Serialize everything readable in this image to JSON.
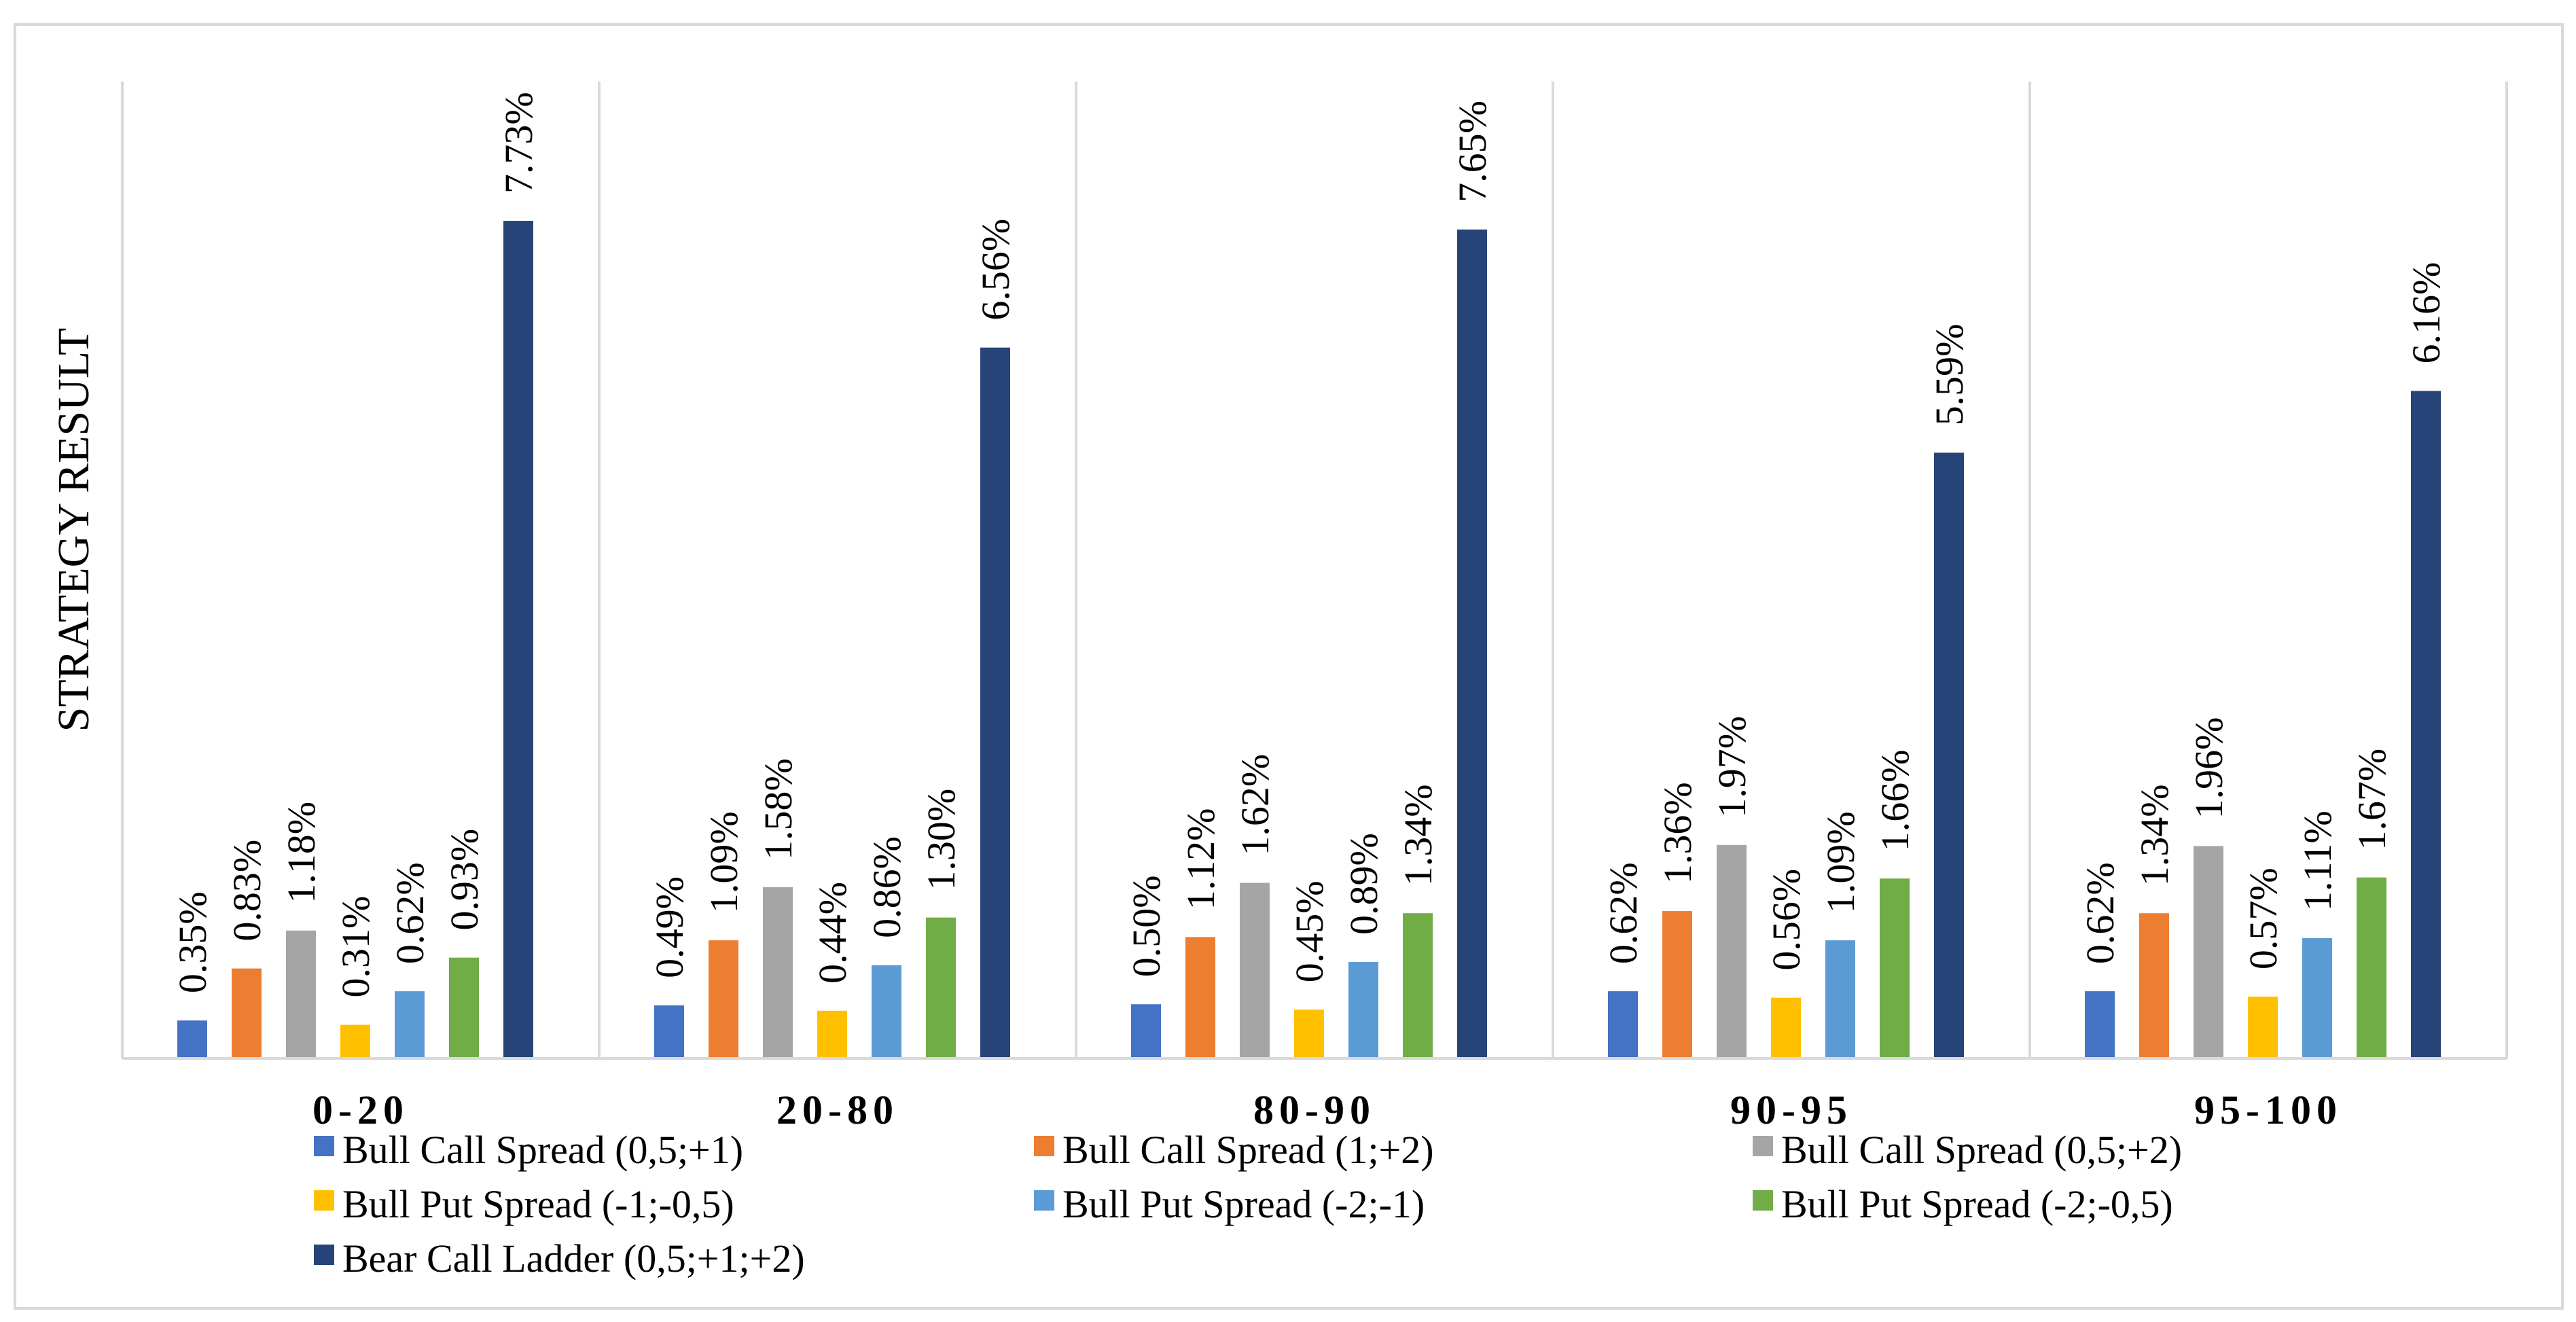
{
  "chart_data": {
    "type": "bar",
    "title": "",
    "xlabel": "",
    "ylabel": "STRATEGY RESULT",
    "ylim": [
      0,
      8.5
    ],
    "grid": false,
    "legend_position": "bottom",
    "categories": [
      "0-20",
      "20-80",
      "80-90",
      "90-95",
      "95-100"
    ],
    "series": [
      {
        "name": "Bull Call Spread (0,5;+1)",
        "color": "#4472c4",
        "values": [
          0.35,
          0.49,
          0.5,
          0.62,
          0.62
        ],
        "labels": [
          "0.35%",
          "0.49%",
          "0.50%",
          "0.62%",
          "0.62%"
        ]
      },
      {
        "name": "Bull Call Spread (1;+2)",
        "color": "#ed7d31",
        "values": [
          0.83,
          1.09,
          1.12,
          1.36,
          1.34
        ],
        "labels": [
          "0.83%",
          "1.09%",
          "1.12%",
          "1.36%",
          "1.34%"
        ]
      },
      {
        "name": "Bull Call Spread (0,5;+2)",
        "color": "#a5a5a5",
        "values": [
          1.18,
          1.58,
          1.62,
          1.97,
          1.96
        ],
        "labels": [
          "1.18%",
          "1.58%",
          "1.62%",
          "1.97%",
          "1.96%"
        ]
      },
      {
        "name": "Bull Put Spread (-1;-0,5)",
        "color": "#ffc000",
        "values": [
          0.31,
          0.44,
          0.45,
          0.56,
          0.57
        ],
        "labels": [
          "0.31%",
          "0.44%",
          "0.45%",
          "0.56%",
          "0.57%"
        ]
      },
      {
        "name": "Bull Put Spread (-2;-1)",
        "color": "#5b9bd5",
        "values": [
          0.62,
          0.86,
          0.89,
          1.09,
          1.11
        ],
        "labels": [
          "0.62%",
          "0.86%",
          "0.89%",
          "1.09%",
          "1.11%"
        ]
      },
      {
        "name": "Bull Put Spread (-2;-0,5)",
        "color": "#70ad47",
        "values": [
          0.93,
          1.3,
          1.34,
          1.66,
          1.67
        ],
        "labels": [
          "0.93%",
          "1.30%",
          "1.34%",
          "1.66%",
          "1.67%"
        ]
      },
      {
        "name": "Bear Call Ladder (0,5;+1;+2)",
        "color": "#264478",
        "values": [
          7.73,
          6.56,
          7.65,
          5.59,
          6.16
        ],
        "labels": [
          "7.73%",
          "6.56%",
          "7.65%",
          "5.59%",
          "6.16%"
        ]
      }
    ]
  }
}
